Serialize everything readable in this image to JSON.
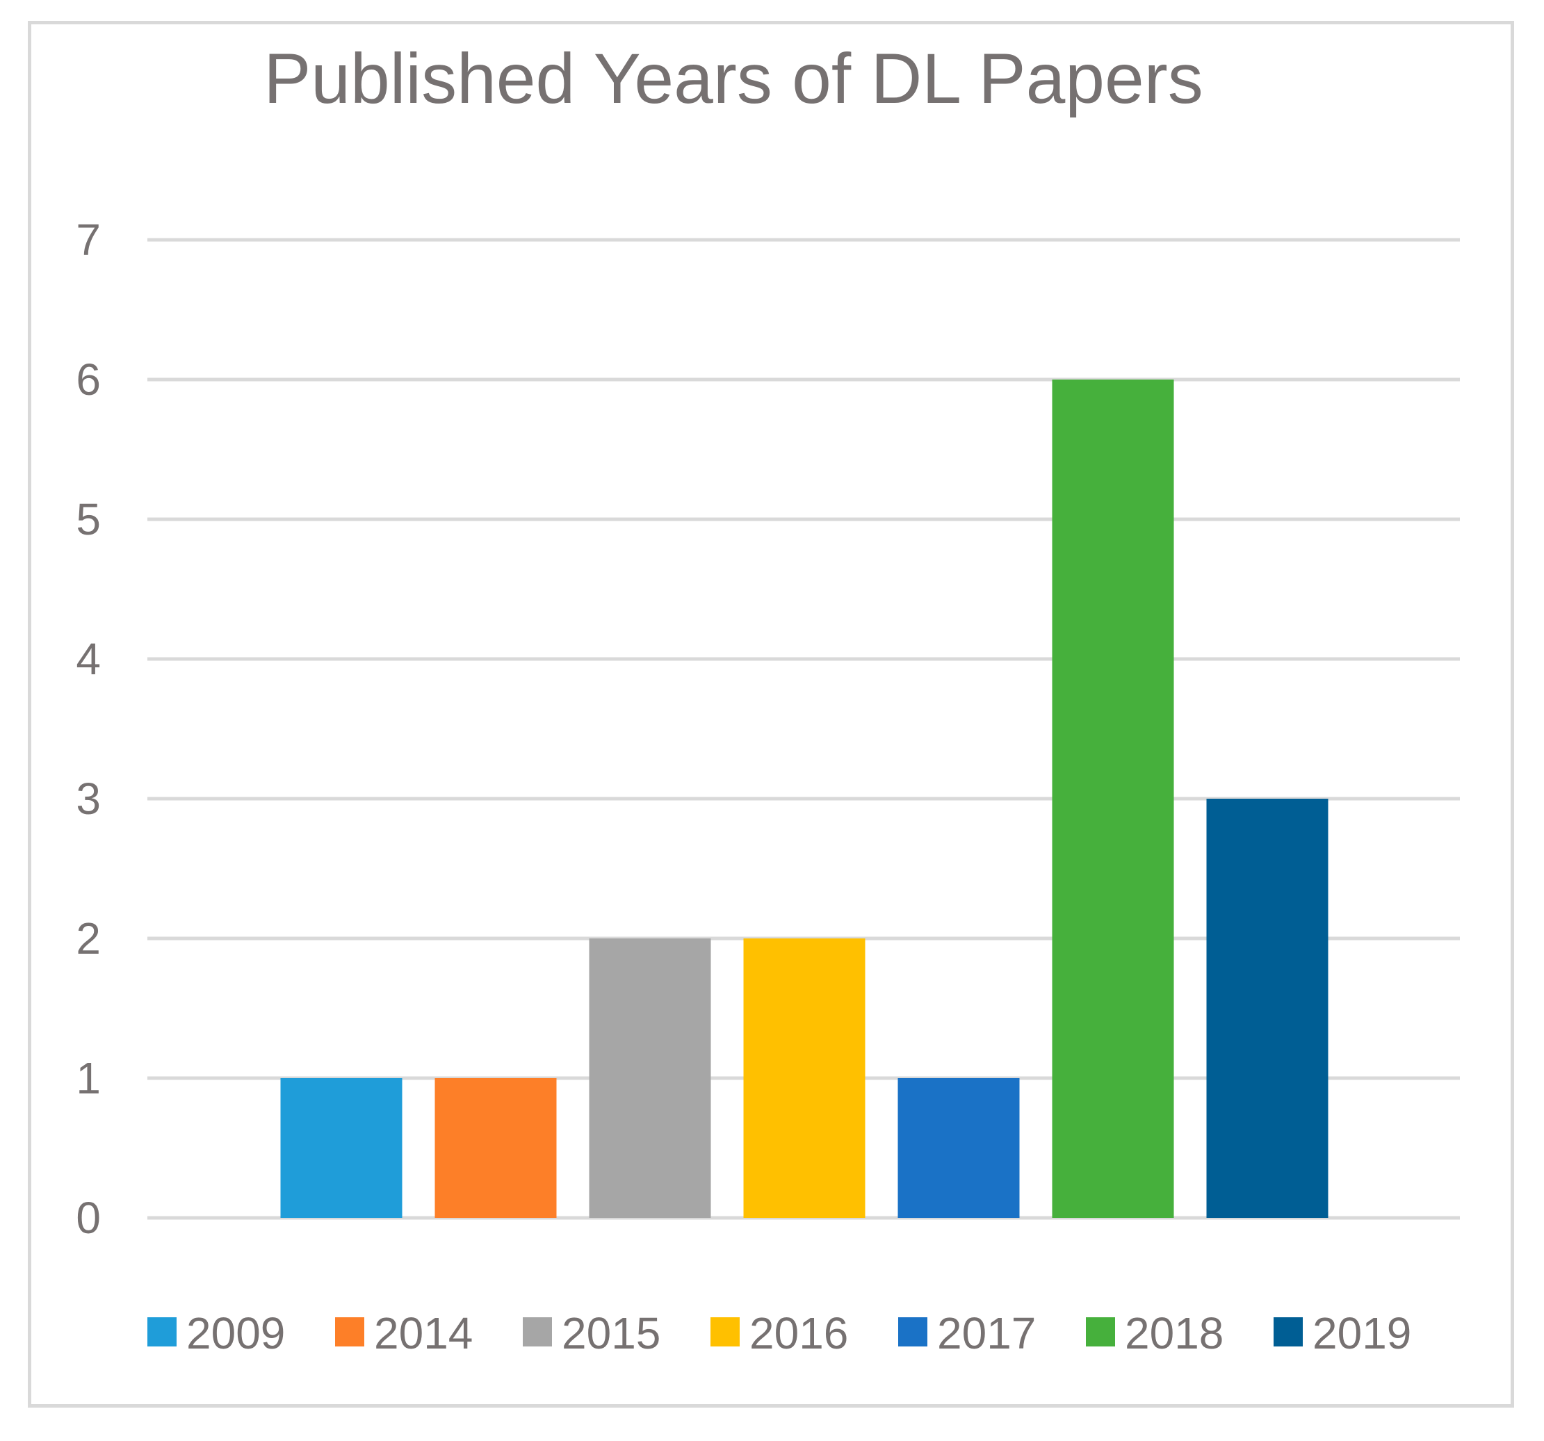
{
  "chart_data": {
    "type": "bar",
    "title": "Published Years of DL Papers",
    "xlabel": "",
    "ylabel": "",
    "ylim": [
      0,
      7
    ],
    "yticks": [
      "0",
      "1",
      "2",
      "3",
      "4",
      "5",
      "6",
      "7"
    ],
    "grid": true,
    "legend_position": "bottom",
    "series": [
      {
        "name": "2009",
        "value": 1,
        "color": "#1f9dd9"
      },
      {
        "name": "2014",
        "value": 1,
        "color": "#fd7f28"
      },
      {
        "name": "2015",
        "value": 2,
        "color": "#a6a6a6"
      },
      {
        "name": "2016",
        "value": 2,
        "color": "#ffc000"
      },
      {
        "name": "2017",
        "value": 1,
        "color": "#1a72c6"
      },
      {
        "name": "2018",
        "value": 6,
        "color": "#46b03c"
      },
      {
        "name": "2019",
        "value": 3,
        "color": "#005e94"
      }
    ]
  }
}
